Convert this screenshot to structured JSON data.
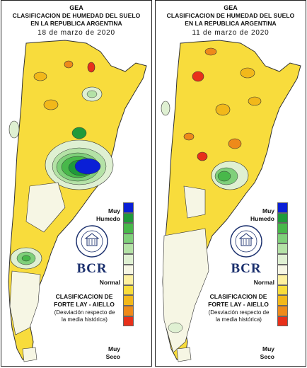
{
  "panels": [
    {
      "org": "GEA",
      "title_line1": "CLASIFICACION DE HUMEDAD DEL SUELO",
      "title_line2": "EN LA REPUBLICA ARGENTINA",
      "date": "18 de marzo de 2020"
    },
    {
      "org": "GEA",
      "title_line1": "CLASIFICACION DE HUMEDAD DEL SUELO",
      "title_line2": "EN LA REPUBLICA ARGENTINA",
      "date": "11 de marzo de 2020"
    }
  ],
  "legend": {
    "muy": "Muy",
    "humedo": "Humedo",
    "normal": "Normal",
    "muy_seco": "Muy",
    "seco": "Seco",
    "colors": [
      "#0a1fd6",
      "#1f9a3a",
      "#48b84a",
      "#7fd07a",
      "#b4e2a6",
      "#dff0d2",
      "#f6f6e4",
      "#fdf0a0",
      "#f8dc3c",
      "#f2b81a",
      "#ee8a1a",
      "#e8301a"
    ]
  },
  "classification": {
    "title_line1": "CLASIFICACION DE",
    "title_line2": "FORTE LAY - AIELLO",
    "sub_line1": "(Desviación respecto de",
    "sub_line2": "la media histórica)"
  },
  "logo": {
    "name": "BCR"
  },
  "map_colors": {
    "normal": "#f6f6e4",
    "dry": "#fdf0a0",
    "drier": "#f8dc3c",
    "very_dry": "#f2b81a",
    "extreme_dry": "#ee8a1a",
    "red": "#e8301a",
    "wet_light": "#dff0d2",
    "wet": "#7fd07a",
    "wetter": "#48b84a",
    "very_wet": "#1f9a3a",
    "extreme_wet": "#0a1fd6"
  }
}
